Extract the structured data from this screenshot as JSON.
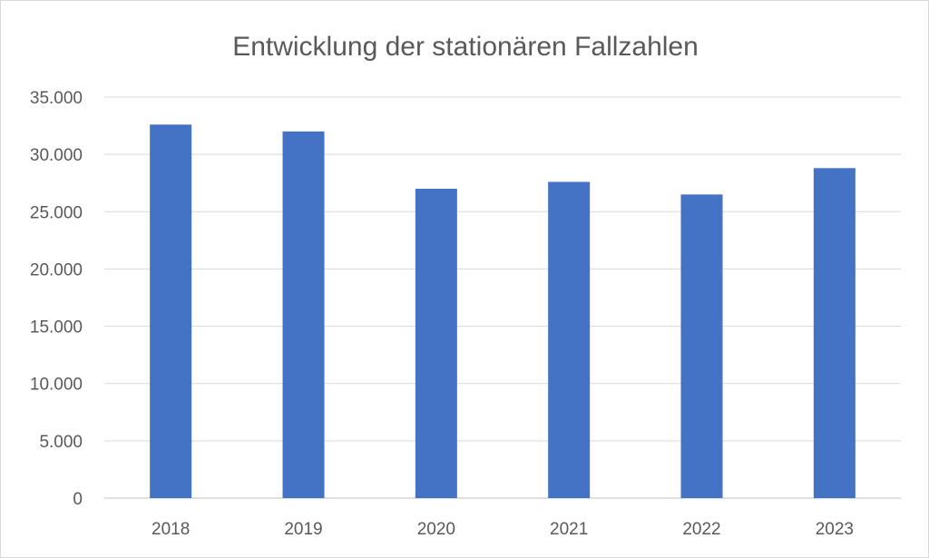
{
  "chart_data": {
    "type": "bar",
    "title": "Entwicklung der stationären Fallzahlen",
    "xlabel": "",
    "ylabel": "",
    "categories": [
      "2018",
      "2019",
      "2020",
      "2021",
      "2022",
      "2023"
    ],
    "values": [
      32600,
      32000,
      27000,
      27600,
      26500,
      28800
    ],
    "ylim": [
      0,
      35000
    ],
    "yticks": [
      0,
      5000,
      10000,
      15000,
      20000,
      25000,
      30000,
      35000
    ],
    "ytick_labels": [
      "0",
      "5.000",
      "10.000",
      "15.000",
      "20.000",
      "25.000",
      "30.000",
      "35.000"
    ],
    "grid": true,
    "legend": "none",
    "bar_color": "#4472c4"
  }
}
